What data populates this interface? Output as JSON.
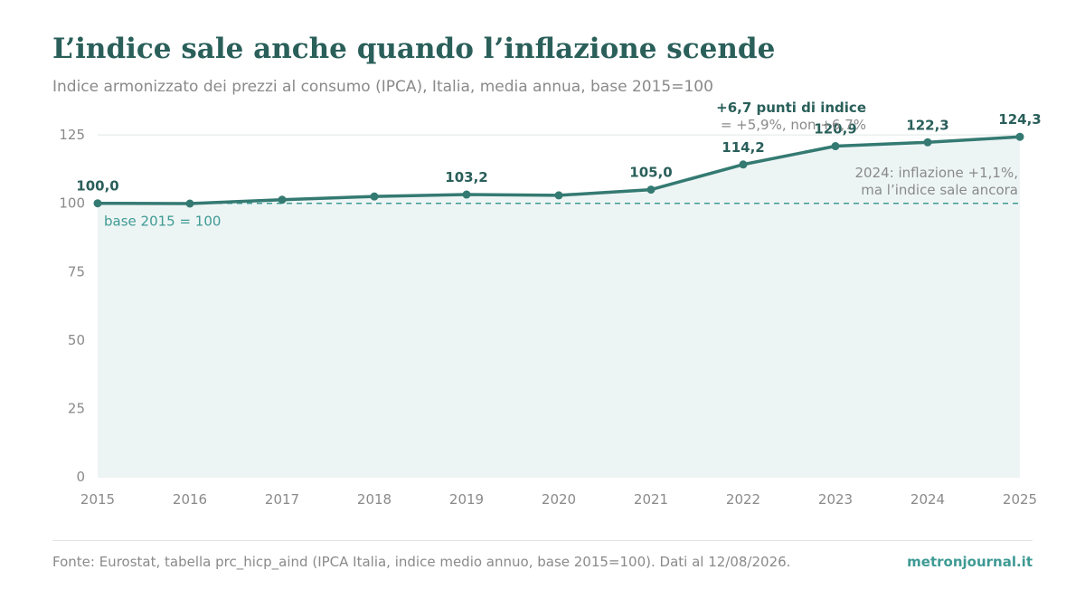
{
  "header": {
    "title": "L’indice sale anche quando l’inflazione scende",
    "subtitle": "Indice armonizzato dei prezzi al consumo (IPCA), Italia, media annua, base 2015=100"
  },
  "footer": {
    "source": "Fonte: Eurostat, tabella prc_hicp_aind (IPCA Italia, indice medio annuo, base 2015=100). Dati al 12/08/2026.",
    "brand": "metronjournal.it"
  },
  "colors": {
    "line": "#347a72",
    "area": "#edf5f4",
    "baseline": "#3f9a94",
    "grid": "#dfe6e5",
    "label": "#2a5f5a",
    "muted": "#8a8a8a"
  },
  "chart_data": {
    "type": "line",
    "x": [
      "2015",
      "2016",
      "2017",
      "2018",
      "2019",
      "2020",
      "2021",
      "2022",
      "2023",
      "2024",
      "2025"
    ],
    "values": [
      100.0,
      99.9,
      101.3,
      102.5,
      103.2,
      102.9,
      105.0,
      114.2,
      120.9,
      122.3,
      124.3
    ],
    "data_labels": [
      {
        "index": 0,
        "text": "100,0"
      },
      {
        "index": 4,
        "text": "103,2"
      },
      {
        "index": 6,
        "text": "105,0"
      },
      {
        "index": 7,
        "text": "114,2"
      },
      {
        "index": 8,
        "text": "120,9"
      },
      {
        "index": 9,
        "text": "122,3"
      },
      {
        "index": 10,
        "text": "124,3"
      }
    ],
    "ylim": [
      0,
      130
    ],
    "yticks": [
      0,
      25,
      50,
      75,
      100,
      125
    ],
    "grid": true,
    "reference_line": {
      "value": 100,
      "label": "base 2015 = 100"
    },
    "annotations": {
      "points_title": "+6,7 punti di indice",
      "points_note": "= +5,9%, non +6,7%",
      "inflation_line1": "2024: inflazione +1,1%,",
      "inflation_line2": "ma l’indice sale ancora"
    }
  }
}
